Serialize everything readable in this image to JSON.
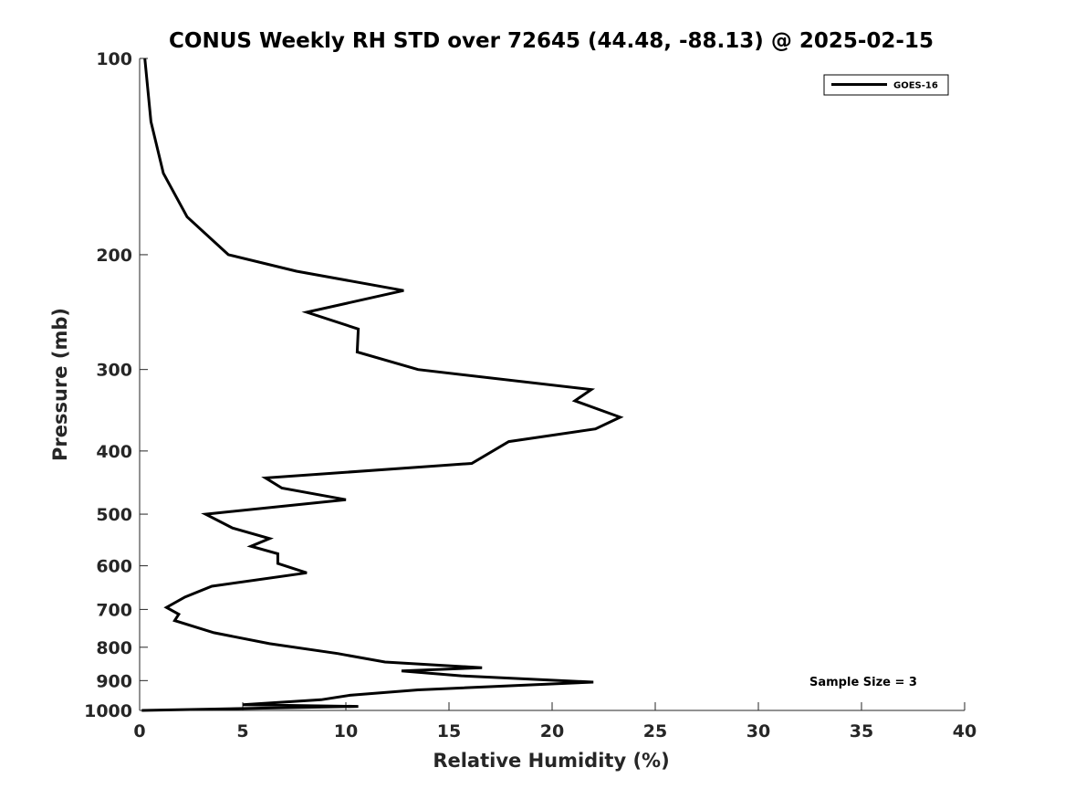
{
  "chart_data": {
    "type": "line",
    "title": "CONUS Weekly RH STD over 72645 (44.48, -88.13) @ 2025-02-15",
    "xlabel": "Relative Humidity (%)",
    "ylabel": "Pressure (mb)",
    "xlim": [
      0,
      40
    ],
    "ylim": [
      100,
      1000
    ],
    "y_scale": "log",
    "y_direction": "reversed",
    "x_ticks": [
      0,
      5,
      10,
      15,
      20,
      25,
      30,
      35,
      40
    ],
    "x_tick_labels": [
      "0",
      "5",
      "10",
      "15",
      "20",
      "25",
      "30",
      "35",
      "40"
    ],
    "y_ticks": [
      100,
      200,
      300,
      400,
      500,
      600,
      700,
      800,
      900,
      1000
    ],
    "y_tick_labels": [
      "100",
      "200",
      "300",
      "400",
      "500",
      "600",
      "700",
      "800",
      "900",
      "1000"
    ],
    "grid": false,
    "legend_position": "top-right",
    "series": [
      {
        "name": "GOES-16",
        "color": "#000000",
        "points": [
          [
            0.25,
            100
          ],
          [
            0.55,
            125
          ],
          [
            1.15,
            150
          ],
          [
            2.3,
            175
          ],
          [
            4.3,
            200
          ],
          [
            7.6,
            212
          ],
          [
            12.8,
            227
          ],
          [
            8.1,
            245
          ],
          [
            10.6,
            260
          ],
          [
            10.55,
            282
          ],
          [
            13.5,
            300
          ],
          [
            21.9,
            322
          ],
          [
            21.1,
            335
          ],
          [
            23.3,
            355
          ],
          [
            22.1,
            370
          ],
          [
            17.9,
            387
          ],
          [
            16.1,
            418
          ],
          [
            6.1,
            440
          ],
          [
            6.9,
            456
          ],
          [
            10.0,
            475
          ],
          [
            3.2,
            500
          ],
          [
            4.5,
            525
          ],
          [
            6.3,
            545
          ],
          [
            5.4,
            560
          ],
          [
            6.7,
            575
          ],
          [
            6.7,
            595
          ],
          [
            8.1,
            615
          ],
          [
            3.5,
            645
          ],
          [
            2.2,
            670
          ],
          [
            1.3,
            695
          ],
          [
            1.9,
            712
          ],
          [
            1.7,
            728
          ],
          [
            3.6,
            760
          ],
          [
            6.3,
            790
          ],
          [
            9.6,
            818
          ],
          [
            11.9,
            843
          ],
          [
            16.6,
            860
          ],
          [
            12.7,
            870
          ],
          [
            15.6,
            885
          ],
          [
            22.0,
            905
          ],
          [
            13.5,
            930
          ],
          [
            10.2,
            948
          ],
          [
            8.8,
            963
          ],
          [
            5.0,
            980
          ],
          [
            10.6,
            986
          ],
          [
            0.1,
            1000
          ]
        ]
      }
    ],
    "legend": [
      "GOES-16"
    ],
    "annotations": [
      "Sample Size = 3"
    ]
  }
}
